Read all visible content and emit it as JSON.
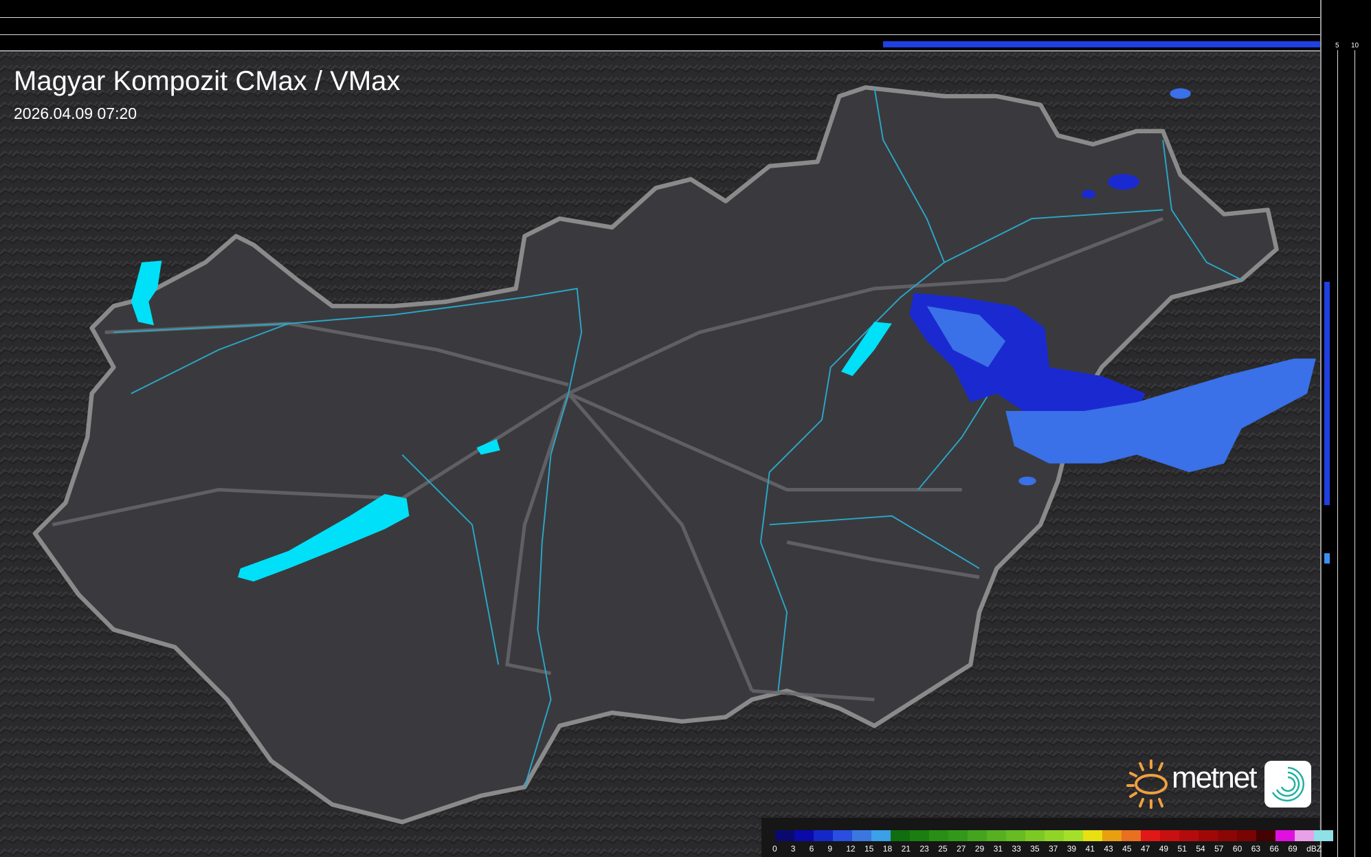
{
  "header": {
    "title": "Magyar Kompozit CMax / VMax",
    "timestamp": "2026.04.09 07:20"
  },
  "top_profile": {
    "ticks": [
      "10",
      "5"
    ]
  },
  "side_profile": {
    "ticks": [
      "5",
      "10"
    ]
  },
  "legend": {
    "unit": "dBZ",
    "labels": [
      "0",
      "3",
      "6",
      "9",
      "12",
      "15",
      "18",
      "21",
      "23",
      "25",
      "27",
      "29",
      "31",
      "33",
      "35",
      "37",
      "39",
      "41",
      "43",
      "45",
      "47",
      "49",
      "51",
      "54",
      "57",
      "60",
      "63",
      "66",
      "69"
    ],
    "colors": [
      "#0a0a6e",
      "#0a0aa8",
      "#1428c8",
      "#2a4ee0",
      "#3a78e0",
      "#3aa0e8",
      "#106e10",
      "#1a7e10",
      "#288e14",
      "#32981a",
      "#44a41e",
      "#56b020",
      "#66bc20",
      "#7cc824",
      "#90d428",
      "#a4e02a",
      "#e8e010",
      "#e8a010",
      "#e87020",
      "#e01818",
      "#c81010",
      "#b40c0c",
      "#a00808",
      "#8c0606",
      "#780404",
      "#440202",
      "#e010e0",
      "#e8a0e8",
      "#90e0e8"
    ]
  },
  "logo": {
    "brand": "metnet",
    "accent": "#f0a040"
  },
  "colors": {
    "lake": "#00e0f8",
    "river": "#2aa8c8",
    "border": "#8a8a8a",
    "land": "#3a3a3e",
    "precip_light": "#3a70e8",
    "precip_dark": "#1a2ad0"
  }
}
